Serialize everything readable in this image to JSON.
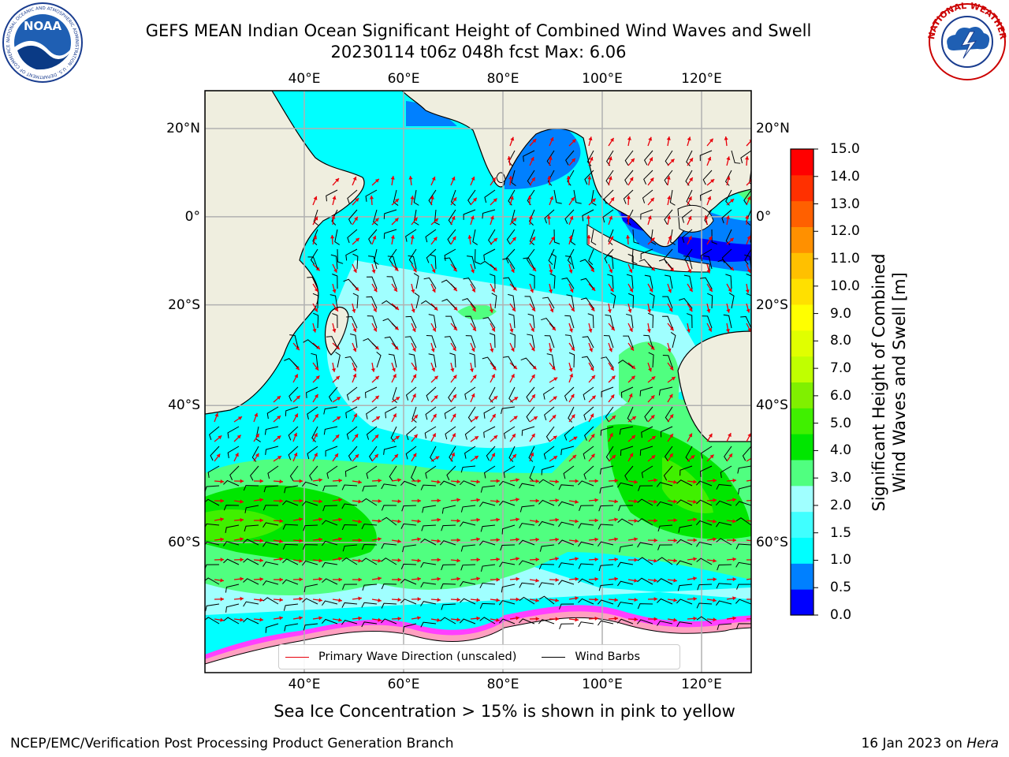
{
  "title_line1": "GEFS MEAN Indian Ocean Significant Height of Combined Wind Waves and Swell",
  "title_line2": "20230114 t06z 048h fcst   Max: 6.06",
  "noaa_logo_text": "NOAA",
  "noaa_ring_text": "NATIONAL OCEANIC AND ATMOSPHERIC ADMINISTRATION · U.S. DEPARTMENT OF COMMERCE",
  "nws_ring_text": "NATIONAL WEATHER SERVICE",
  "map": {
    "lon_range": [
      20,
      130
    ],
    "lat_range": [
      -72,
      28
    ],
    "lon_labels": [
      "40°E",
      "60°E",
      "80°E",
      "100°E",
      "120°E"
    ],
    "lon_values": [
      40,
      60,
      80,
      100,
      120
    ],
    "lat_labels": [
      "20°N",
      "0°",
      "20°S",
      "40°S",
      "60°S"
    ],
    "lat_values": [
      20,
      0,
      -20,
      -40,
      -60
    ],
    "land_color": "#efeedf",
    "grid_color": "#b0b0b0",
    "wave_arrow_color": "#e8000b",
    "wind_barb_color": "#000000"
  },
  "legend": {
    "wave_label": "Primary Wave Direction (unscaled)",
    "wind_label": "Wind Barbs"
  },
  "colorbar": {
    "label_line1": "Significant Height of Combined",
    "label_line2": "Wind Waves and Swell [m]",
    "ticks": [
      "15.0",
      "14.0",
      "13.0",
      "12.0",
      "11.0",
      "10.0",
      "9.0",
      "8.0",
      "7.0",
      "6.0",
      "5.0",
      "4.0",
      "3.0",
      "2.0",
      "1.5",
      "1.0",
      "0.5",
      "0.0"
    ],
    "colors": [
      "#0000ff",
      "#0080ff",
      "#00ffff",
      "#40ffff",
      "#a0ffff",
      "#50ff80",
      "#00e600",
      "#40f000",
      "#80f000",
      "#c0ff00",
      "#e0ff00",
      "#ffff00",
      "#ffe000",
      "#ffc000",
      "#ff9000",
      "#ff6000",
      "#ff3000",
      "#ff0000"
    ]
  },
  "caption": "Sea Ice Concentration > 15% is shown in pink to yellow",
  "credit_left": "NCEP/EMC/Verification Post Processing Product Generation Branch",
  "credit_right_date": "16 Jan 2023 on ",
  "credit_right_host": "Hera"
}
